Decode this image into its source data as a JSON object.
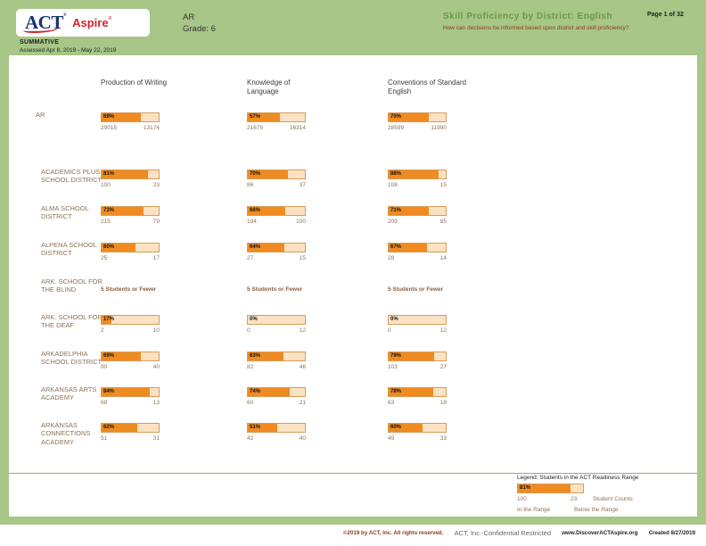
{
  "header": {
    "logo_act": "ACT",
    "logo_reg": "®",
    "logo_aspire": "Aspire",
    "summative": "SUMMATIVE",
    "assessed": "Assessed Apr 8, 2019 - May 22, 2019",
    "state": "AR",
    "grade": "Grade: 6",
    "title": "Skill Proficiency by District: English",
    "subtitle": "How can decisions be informed based upon district and skill proficiency?",
    "page": "Page 1 of 32"
  },
  "columns": [
    {
      "label": "Production of Writing"
    },
    {
      "label": "Knowledge of Language"
    },
    {
      "label": "Conventions of Standard English"
    }
  ],
  "rows": [
    {
      "name": "AR",
      "cells": [
        {
          "pct": 69,
          "pct_label": "69%",
          "in_range": "29015",
          "below_range": "13174"
        },
        {
          "pct": 57,
          "pct_label": "57%",
          "in_range": "21675",
          "below_range": "16314"
        },
        {
          "pct": 70,
          "pct_label": "70%",
          "in_range": "28599",
          "below_range": "11990"
        }
      ]
    },
    {
      "name": "ACADEMICS PLUS SCHOOL DISTRICT",
      "cells": [
        {
          "pct": 81,
          "pct_label": "81%",
          "in_range": "100",
          "below_range": "23"
        },
        {
          "pct": 70,
          "pct_label": "70%",
          "in_range": "86",
          "below_range": "37"
        },
        {
          "pct": 88,
          "pct_label": "88%",
          "in_range": "108",
          "below_range": "15"
        }
      ]
    },
    {
      "name": "ALMA SCHOOL DISTRICT",
      "cells": [
        {
          "pct": 73,
          "pct_label": "73%",
          "in_range": "215",
          "below_range": "79"
        },
        {
          "pct": 66,
          "pct_label": "66%",
          "in_range": "194",
          "below_range": "100"
        },
        {
          "pct": 71,
          "pct_label": "71%",
          "in_range": "209",
          "below_range": "85"
        }
      ]
    },
    {
      "name": "ALPENA SCHOOL DISTRICT",
      "cells": [
        {
          "pct": 60,
          "pct_label": "60%",
          "in_range": "25",
          "below_range": "17"
        },
        {
          "pct": 64,
          "pct_label": "64%",
          "in_range": "27",
          "below_range": "15"
        },
        {
          "pct": 67,
          "pct_label": "67%",
          "in_range": "28",
          "below_range": "14"
        }
      ]
    },
    {
      "name": "ARK. SCHOOL FOR THE BLIND",
      "cells": [
        {
          "note": "5 Students or Fewer"
        },
        {
          "note": "5 Students or Fewer"
        },
        {
          "note": "5 Students or Fewer"
        }
      ]
    },
    {
      "name": "ARK. SCHOOL FOR THE DEAF",
      "cells": [
        {
          "pct": 17,
          "pct_label": "17%",
          "in_range": "2",
          "below_range": "10"
        },
        {
          "pct": 0,
          "pct_label": "0%",
          "in_range": "0",
          "below_range": "12"
        },
        {
          "pct": 0,
          "pct_label": "0%",
          "in_range": "0",
          "below_range": "12"
        }
      ]
    },
    {
      "name": "ARKADELPHIA SCHOOL DISTRICT",
      "cells": [
        {
          "pct": 69,
          "pct_label": "69%",
          "in_range": "90",
          "below_range": "40"
        },
        {
          "pct": 63,
          "pct_label": "63%",
          "in_range": "82",
          "below_range": "48"
        },
        {
          "pct": 79,
          "pct_label": "79%",
          "in_range": "103",
          "below_range": "27"
        }
      ]
    },
    {
      "name": "ARKANSAS ARTS ACADEMY",
      "cells": [
        {
          "pct": 84,
          "pct_label": "84%",
          "in_range": "68",
          "below_range": "13"
        },
        {
          "pct": 74,
          "pct_label": "74%",
          "in_range": "60",
          "below_range": "21"
        },
        {
          "pct": 78,
          "pct_label": "78%",
          "in_range": "63",
          "below_range": "18"
        }
      ]
    },
    {
      "name": "ARKANSAS CONNECTIONS ACADEMY",
      "cells": [
        {
          "pct": 62,
          "pct_label": "62%",
          "in_range": "51",
          "below_range": "31"
        },
        {
          "pct": 51,
          "pct_label": "51%",
          "in_range": "42",
          "below_range": "40"
        },
        {
          "pct": 60,
          "pct_label": "60%",
          "in_range": "49",
          "below_range": "33"
        }
      ]
    }
  ],
  "legend": {
    "title": "Legend: Students in the ACT Readiness Range",
    "bar_pct": 81,
    "bar_label": "81%",
    "in_count": "100",
    "below_count": "23",
    "counts_label": "Student Counts",
    "in_label": "In the Range",
    "below_label": "Below the Range"
  },
  "footer": {
    "copyright": "©2019 by ACT, Inc. All rights reserved.",
    "confidential": "ACT, Inc.-Confidential Restricted",
    "website": "www.DiscoverACTAspire.org",
    "created": "Created 8/27/2019"
  },
  "colors": {
    "frame_green": "#a7c687",
    "title_green": "#679a44",
    "maroon": "#8a3a1c",
    "bar_orange": "#ef8b20",
    "bar_pale": "#fbe2c2",
    "text_brown": "#8d7255"
  }
}
